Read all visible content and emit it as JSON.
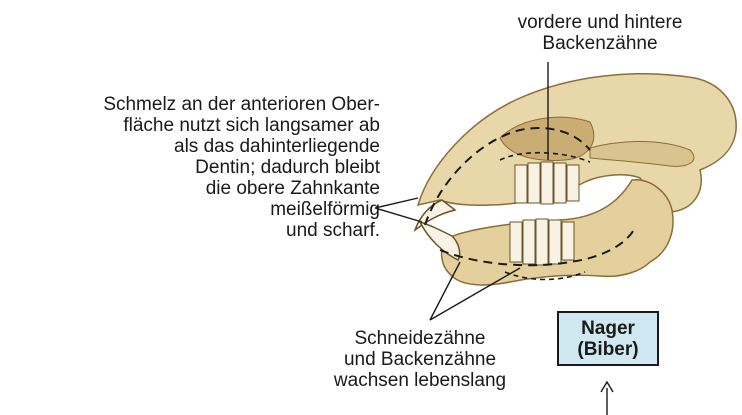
{
  "labels": {
    "enamel": "Schmelz an der anterioren Ober-\nfläche nutzt sich langsamer ab\nals das dahinterliegende\nDentin; dadurch bleibt\ndie obere Zahnkante\nmeißelförmig\nund scharf.",
    "molars": "vordere und hintere\nBackenzähne",
    "incisors": "Schneidezähne\nund Backenzähne\nwachsen lebenslang"
  },
  "badge": {
    "title": "Nager",
    "subtitle": "(Biber)",
    "fill": "#cfe8f1"
  },
  "colors": {
    "bone": "#e8d7a8",
    "bone_shadow": "#b89a5e",
    "tooth": "#f7f2e4"
  }
}
